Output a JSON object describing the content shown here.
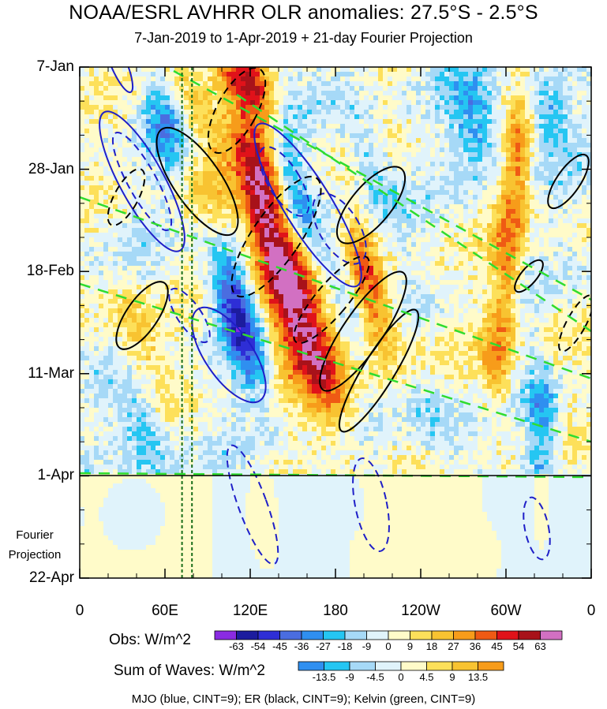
{
  "header": {
    "title": "NOAA/ESRL AVHRR OLR anomalies: 27.5°S - 2.5°S",
    "subtitle": "7-Jan-2019 to 1-Apr-2019 + 21-day Fourier Projection"
  },
  "colors": {
    "mjo": "#1f1fc8",
    "er": "#000000",
    "kelvin": "#2fdc2f",
    "divider": "#000000",
    "reference_lines": "#1a6e1a"
  },
  "chart_data": {
    "type": "heatmap",
    "title": "NOAA/ESRL AVHRR OLR anomalies: 27.5°S - 2.5°S",
    "subtitle": "7-Jan-2019 to 1-Apr-2019 + 21-day Fourier Projection",
    "x_ticks": [
      "0",
      "60E",
      "120E",
      "180",
      "120W",
      "60W",
      "0"
    ],
    "x_range_deg_east": [
      0,
      360
    ],
    "y_ticks": [
      "7-Jan",
      "28-Jan",
      "18-Feb",
      "11-Mar",
      "1-Apr",
      "22-Apr"
    ],
    "y_range": [
      "7-Jan-2019",
      "22-Apr-2019"
    ],
    "observation_end": "1-Apr",
    "projection_label": "Fourier Projection",
    "reference_longitudes_deg_east": [
      72,
      79
    ],
    "obs_colorbar": {
      "label": "Obs: W/m^2",
      "levels": [
        -63,
        -54,
        -45,
        -36,
        -27,
        -18,
        -9,
        0,
        9,
        18,
        27,
        36,
        45,
        54,
        63
      ],
      "colors": [
        "#8a2be2",
        "#1c1c9e",
        "#2e2ed6",
        "#4a6de0",
        "#2f8ff0",
        "#25c6f2",
        "#a6d9f7",
        "#e0f3fb",
        "#fffbc9",
        "#fde05a",
        "#f8c331",
        "#f79c1a",
        "#ef5a14",
        "#e0121a",
        "#a8121a",
        "#d270c2"
      ]
    },
    "waves_colorbar": {
      "label": "Sum of Waves: W/m^2",
      "levels": [
        -13.5,
        -9,
        -4.5,
        0,
        4.5,
        9,
        13.5
      ],
      "colors": [
        "#2f8ff0",
        "#25c6f2",
        "#a6d9f7",
        "#e0f3fb",
        "#fffbc9",
        "#fde05a",
        "#f8c331",
        "#f79c1a"
      ]
    },
    "contour_series": [
      {
        "name": "MJO",
        "color": "blue",
        "cint": 9
      },
      {
        "name": "ER",
        "color": "black",
        "cint": 9
      },
      {
        "name": "Kelvin",
        "color": "green",
        "cint": 9
      }
    ]
  },
  "footer": {
    "legend_note": "MJO (blue, CINT=9); ER (black, CINT=9); Kelvin (green, CINT=9)"
  }
}
